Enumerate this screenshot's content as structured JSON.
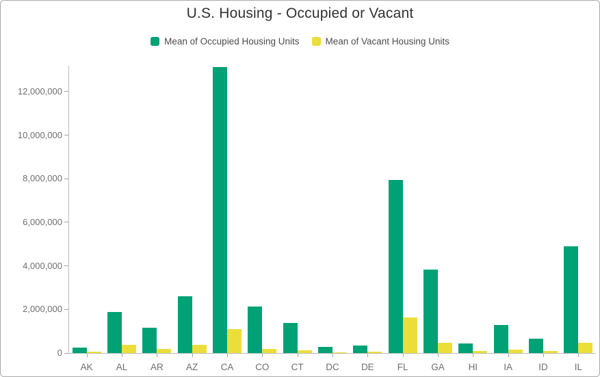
{
  "chart": {
    "title": "U.S. Housing - Occupied or Vacant"
  },
  "chart_data": {
    "type": "bar",
    "title": "U.S. Housing - Occupied or Vacant",
    "xlabel": "",
    "ylabel": "",
    "categories": [
      "AK",
      "AL",
      "AR",
      "AZ",
      "CA",
      "CO",
      "CT",
      "DC",
      "DE",
      "FL",
      "GA",
      "HI",
      "IA",
      "ID",
      "IL"
    ],
    "series": [
      {
        "name": "Mean of Occupied Housing Units",
        "color": "#00A175",
        "values": [
          240000,
          1880000,
          1160000,
          2610000,
          13120000,
          2130000,
          1380000,
          270000,
          360000,
          7950000,
          3840000,
          440000,
          1280000,
          650000,
          4900000
        ]
      },
      {
        "name": "Mean of Vacant Housing Units",
        "color": "#EBDE3B",
        "values": [
          60000,
          370000,
          190000,
          380000,
          1100000,
          200000,
          120000,
          30000,
          60000,
          1630000,
          470000,
          80000,
          150000,
          80000,
          470000
        ]
      }
    ],
    "ylim": [
      0,
      13190000
    ],
    "y_ticks": [
      0,
      2000000,
      4000000,
      6000000,
      8000000,
      10000000,
      12000000
    ],
    "y_tick_labels": [
      "0",
      "2,000,000",
      "4,000,000",
      "6,000,000",
      "8,000,000",
      "10,000,000",
      "12,000,000"
    ],
    "grid": false,
    "legend_position": "top"
  }
}
